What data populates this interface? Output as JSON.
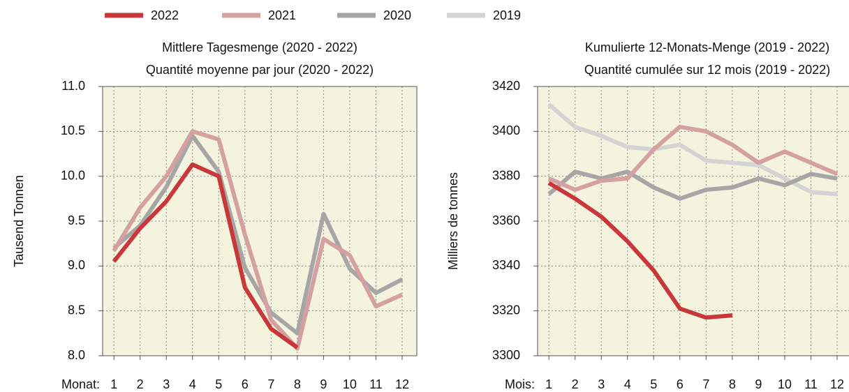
{
  "chart_data": [
    {
      "type": "line",
      "title": "Mittlere Tagesmenge (2020 - 2022)",
      "subtitle": "Quantité moyenne par jour (2020 - 2022)",
      "y_label": "Tausend Tonnen",
      "x_label": "Monat:",
      "x": [
        1,
        2,
        3,
        4,
        5,
        6,
        7,
        8,
        9,
        10,
        11,
        12
      ],
      "xlim": [
        0.57,
        12.56
      ],
      "xticks": [
        1,
        2,
        3,
        4,
        5,
        6,
        7,
        8,
        9,
        10,
        11,
        12
      ],
      "ylim": [
        8.0,
        11.0
      ],
      "yticks": [
        {
          "value": 8.0,
          "label": "8.0"
        },
        8.5,
        {
          "value": 9.0,
          "label": "9.0"
        },
        9.5,
        {
          "value": 10.0,
          "label": "10.0"
        },
        10.5,
        {
          "value": 11.0,
          "label": "11.0"
        }
      ],
      "grid": true,
      "series": [
        {
          "name": "2020",
          "color": "#a6a6a6",
          "values": [
            9.2,
            9.45,
            9.88,
            10.45,
            10.05,
            8.98,
            8.48,
            8.25,
            9.58,
            8.97,
            8.7,
            8.85
          ]
        },
        {
          "name": "2021",
          "color": "#d4a0a0",
          "values": [
            9.17,
            9.65,
            10.0,
            10.5,
            10.41,
            9.35,
            8.4,
            8.08,
            9.3,
            9.12,
            8.55,
            8.68
          ]
        },
        {
          "name": "2022",
          "color": "#c8373a",
          "values": [
            9.05,
            9.42,
            9.72,
            10.13,
            10.0,
            8.76,
            8.3,
            8.09,
            null,
            null,
            null,
            null
          ]
        }
      ]
    },
    {
      "type": "line",
      "title": "Kumulierte 12-Monats-Menge (2019 - 2022)",
      "subtitle": "Quantité cumulée sur 12 mois (2019 - 2022)",
      "y_label": "Milliers de tonnes",
      "x_label": "Mois:",
      "x": [
        1,
        2,
        3,
        4,
        5,
        6,
        7,
        8,
        9,
        10,
        11,
        12
      ],
      "xlim": [
        0.57,
        12.56
      ],
      "xticks": [
        1,
        2,
        3,
        4,
        5,
        6,
        7,
        8,
        9,
        10,
        11,
        12
      ],
      "ylim": [
        3300,
        3420
      ],
      "yticks": [
        3300,
        3320,
        3340,
        3360,
        3380,
        3400,
        3420
      ],
      "grid": true,
      "series": [
        {
          "name": "2019",
          "color": "#d4d4d4",
          "values": [
            3412,
            3402,
            3398,
            3393,
            3392,
            3394,
            3387,
            3386,
            3385,
            3379,
            3373,
            3372
          ]
        },
        {
          "name": "2020",
          "color": "#a6a6a6",
          "values": [
            3372,
            3382,
            3379,
            3382,
            3375,
            3370,
            3374,
            3375,
            3379,
            3376,
            3381,
            3379
          ]
        },
        {
          "name": "2021",
          "color": "#d4a0a0",
          "values": [
            3379,
            3374,
            3378,
            3379,
            3392,
            3402,
            3400,
            3394,
            3386,
            3391,
            3386,
            3381
          ]
        },
        {
          "name": "2022",
          "color": "#c8373a",
          "values": [
            3377,
            3370,
            3362,
            3351,
            3338,
            3321,
            3317,
            3318,
            null,
            null,
            null,
            null
          ]
        }
      ]
    }
  ]
}
